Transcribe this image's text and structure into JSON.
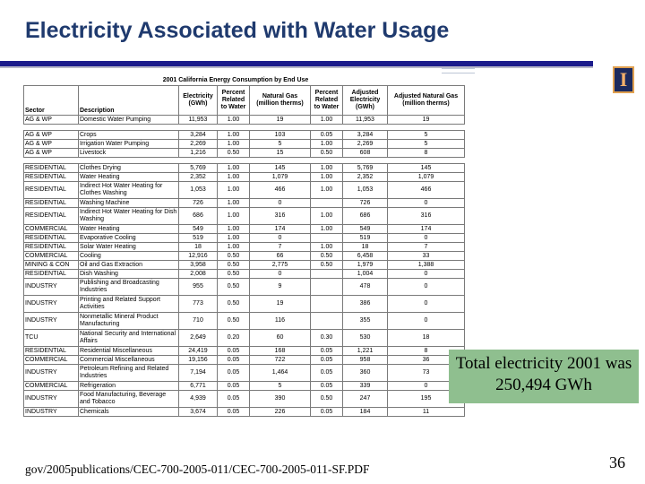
{
  "slide": {
    "title": "Electricity Associated with Water Usage",
    "callout": "Total electricity 2001 was 250,494 GWh",
    "source": "gov/2005publications/CEC-700-2005-011/CEC-700-2005-011-SF.PDF",
    "page_number": "36",
    "colors": {
      "title": "#1f3a6e",
      "rule": "#1c1c8c",
      "callout_bg": "#8fbf8f"
    },
    "logo_icon": "university-i-logo"
  },
  "table": {
    "caption": "2001 California Energy Consumption by End Use",
    "headers": [
      "Sector",
      "Description",
      "Electricity (GWh)",
      "Percent Related to Water",
      "Natural Gas (million therms)",
      "Percent Related to Water",
      "Adjusted Electricity (GWh)",
      "Adjusted Natural Gas (million therms)"
    ],
    "rows": [
      [
        "AG & WP",
        "Domestic Water Pumping",
        "11,953",
        "1.00",
        "19",
        "1.00",
        "11,953",
        "19"
      ],
      null,
      [
        "AG & WP",
        "Crops",
        "3,284",
        "1.00",
        "103",
        "0.05",
        "3,284",
        "5"
      ],
      [
        "AG & WP",
        "Irrigation Water Pumping",
        "2,269",
        "1.00",
        "5",
        "1.00",
        "2,269",
        "5"
      ],
      [
        "AG & WP",
        "Livestock",
        "1,216",
        "0.50",
        "15",
        "0.50",
        "608",
        "8"
      ],
      null,
      [
        "RESIDENTIAL",
        "Clothes Drying",
        "5,769",
        "1.00",
        "145",
        "1.00",
        "5,769",
        "145"
      ],
      [
        "RESIDENTIAL",
        "Water Heating",
        "2,352",
        "1.00",
        "1,079",
        "1.00",
        "2,352",
        "1,079"
      ],
      [
        "RESIDENTIAL",
        "Indirect Hot Water Heating for Clothes Washing",
        "1,053",
        "1.00",
        "466",
        "1.00",
        "1,053",
        "466"
      ],
      [
        "RESIDENTIAL",
        "Washing Machine",
        "726",
        "1.00",
        "0",
        "",
        "726",
        "0"
      ],
      [
        "RESIDENTIAL",
        "Indirect Hot Water Heating for Dish Washing",
        "686",
        "1.00",
        "316",
        "1.00",
        "686",
        "316"
      ],
      [
        "COMMERCIAL",
        "Water Heating",
        "549",
        "1.00",
        "174",
        "1.00",
        "549",
        "174"
      ],
      [
        "RESIDENTIAL",
        "Evaporative Cooling",
        "519",
        "1.00",
        "0",
        "",
        "519",
        "0"
      ],
      [
        "RESIDENTIAL",
        "Solar Water Heating",
        "18",
        "1.00",
        "7",
        "1.00",
        "18",
        "7"
      ],
      [
        "COMMERCIAL",
        "Cooling",
        "12,916",
        "0.50",
        "66",
        "0.50",
        "6,458",
        "33"
      ],
      [
        "MINING & CON",
        "Oil and Gas Extraction",
        "3,958",
        "0.50",
        "2,775",
        "0.50",
        "1,979",
        "1,388"
      ],
      [
        "RESIDENTIAL",
        "Dish Washing",
        "2,008",
        "0.50",
        "0",
        "",
        "1,004",
        "0"
      ],
      [
        "INDUSTRY",
        "Publishing and Broadcasting Industries",
        "955",
        "0.50",
        "9",
        "",
        "478",
        "0"
      ],
      [
        "INDUSTRY",
        "Printing and Related Support Activities",
        "773",
        "0.50",
        "19",
        "",
        "386",
        "0"
      ],
      [
        "INDUSTRY",
        "Nonmetallic Mineral Product Manufacturing",
        "710",
        "0.50",
        "116",
        "",
        "355",
        "0"
      ],
      [
        "TCU",
        "National Security and International Affairs",
        "2,649",
        "0.20",
        "60",
        "0.30",
        "530",
        "18"
      ],
      [
        "RESIDENTIAL",
        "Residential Miscellaneous",
        "24,419",
        "0.05",
        "168",
        "0.05",
        "1,221",
        "8"
      ],
      [
        "COMMERCIAL",
        "Commercial Miscellaneous",
        "19,156",
        "0.05",
        "722",
        "0.05",
        "958",
        "36"
      ],
      [
        "INDUSTRY",
        "Petroleum Refining and Related Industries",
        "7,194",
        "0.05",
        "1,464",
        "0.05",
        "360",
        "73"
      ],
      [
        "COMMERCIAL",
        "Refrigeration",
        "6,771",
        "0.05",
        "5",
        "0.05",
        "339",
        "0"
      ],
      [
        "INDUSTRY",
        "Food Manufacturing, Beverage and Tobacco",
        "4,939",
        "0.05",
        "390",
        "0.50",
        "247",
        "195"
      ],
      [
        "INDUSTRY",
        "Chemicals",
        "3,674",
        "0.05",
        "226",
        "0.05",
        "184",
        "11"
      ]
    ]
  }
}
